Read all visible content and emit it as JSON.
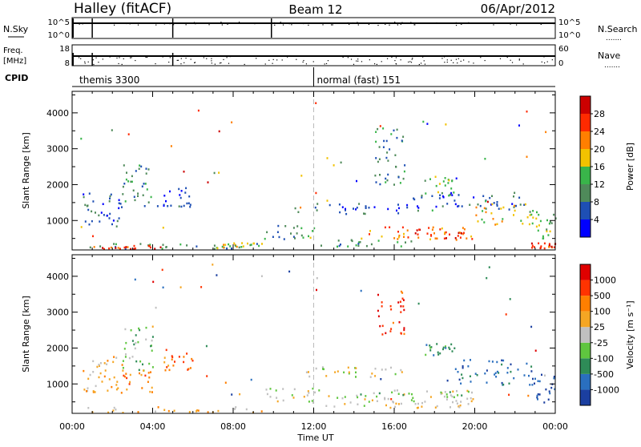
{
  "header": {
    "title": "Halley (fitACF)",
    "beam": "Beam 12",
    "date": "06/Apr/2012"
  },
  "left_labels": {
    "nsky": "N.Sky",
    "freq": "Freq.",
    "freq_unit": "[MHz]",
    "cpid": "CPID"
  },
  "right_labels": {
    "nsearch": "N.Search",
    "nave": "Nave",
    "dots": "......."
  },
  "ticks": {
    "noise_hi": "10^5",
    "noise_lo": "10^0",
    "freq_hi": "18",
    "freq_lo": "8",
    "nave_hi": "60",
    "nave_lo": "0"
  },
  "cpid_labels": [
    {
      "text": "themis 3300",
      "hour": 0.2
    },
    {
      "text": "normal (fast) 151",
      "hour": 12.0
    }
  ],
  "colors": {
    "axis": "#000000",
    "dash": "#bbbbbb"
  },
  "chart_data": [
    {
      "type": "heatmap",
      "quantity": "power",
      "ylabel": "Slant Range [km]",
      "xlabel": "Time UT",
      "xlim": [
        0,
        24
      ],
      "ylim": [
        180,
        4600
      ],
      "x_tick_labels": [
        "00:00",
        "04:00",
        "08:00",
        "12:00",
        "16:00",
        "20:00",
        "00:00"
      ],
      "y_ticks": [
        1000,
        2000,
        3000,
        4000
      ],
      "colorbar": {
        "label": "Power [dB]",
        "ticks": [
          "4",
          "8",
          "12",
          "16",
          "20",
          "24",
          "28"
        ],
        "colors": [
          "#0000ff",
          "#1e4fb4",
          "#4f8a5a",
          "#39b54a",
          "#f2c200",
          "#ff7f00",
          "#ff2a00",
          "#cc0000"
        ]
      },
      "regions": [
        {
          "t0": 0.0,
          "t1": 9.5,
          "r0": 220,
          "r1": 380,
          "level": 2
        },
        {
          "t0": 1.0,
          "t1": 4.5,
          "r0": 230,
          "r1": 330,
          "level": 6
        },
        {
          "t0": 0.5,
          "t1": 2.5,
          "r0": 700,
          "r1": 1800,
          "level": 1
        },
        {
          "t0": 2.5,
          "t1": 4.0,
          "r0": 1400,
          "r1": 2600,
          "level": 2
        },
        {
          "t0": 4.5,
          "t1": 6.0,
          "r0": 1400,
          "r1": 2000,
          "level": 1
        },
        {
          "t0": 7.0,
          "t1": 9.5,
          "r0": 250,
          "r1": 400,
          "level": 4
        },
        {
          "t0": 9.5,
          "t1": 12.0,
          "r0": 500,
          "r1": 900,
          "level": 2
        },
        {
          "t0": 11.0,
          "t1": 16.5,
          "r0": 1200,
          "r1": 1500,
          "level": 1
        },
        {
          "t0": 12.0,
          "t1": 17.0,
          "r0": 300,
          "r1": 500,
          "level": 2
        },
        {
          "t0": 14.0,
          "t1": 20.0,
          "r0": 500,
          "r1": 850,
          "level": 5
        },
        {
          "t0": 17.0,
          "t1": 20.0,
          "r0": 450,
          "r1": 800,
          "level": 6
        },
        {
          "t0": 15.0,
          "t1": 16.5,
          "r0": 2000,
          "r1": 3600,
          "level": 2
        },
        {
          "t0": 17.5,
          "t1": 19.0,
          "r0": 1700,
          "r1": 2300,
          "level": 3
        },
        {
          "t0": 16.5,
          "t1": 22.5,
          "r0": 1300,
          "r1": 1800,
          "level": 1
        },
        {
          "t0": 20.0,
          "t1": 23.0,
          "r0": 900,
          "r1": 1500,
          "level": 4
        },
        {
          "t0": 22.8,
          "t1": 24.0,
          "r0": 250,
          "r1": 400,
          "level": 6
        },
        {
          "t0": 23.0,
          "t1": 24.0,
          "r0": 500,
          "r1": 1300,
          "level": 3
        }
      ]
    },
    {
      "type": "heatmap",
      "quantity": "velocity",
      "ylabel": "Slant Range [km]",
      "xlabel": "Time UT",
      "xlim": [
        0,
        24
      ],
      "ylim": [
        180,
        4600
      ],
      "x_tick_labels": [
        "00:00",
        "04:00",
        "08:00",
        "12:00",
        "16:00",
        "20:00",
        "00:00"
      ],
      "y_ticks": [
        1000,
        2000,
        3000,
        4000
      ],
      "colorbar": {
        "label": "Velocity [m s⁻¹]",
        "ticks": [
          "1000",
          "500",
          "100",
          "25",
          "-25",
          "-100",
          "-500",
          "-1000"
        ],
        "colors": [
          "#1b3fa0",
          "#2a6fbf",
          "#2e8b57",
          "#5fc63f",
          "#c0c0c0",
          "#f5a623",
          "#ff7f00",
          "#ff3300",
          "#e00000"
        ]
      },
      "regions": [
        {
          "t0": 0.0,
          "t1": 9.5,
          "r0": 220,
          "r1": 380,
          "level": 5
        },
        {
          "t0": 0.5,
          "t1": 2.5,
          "r0": 700,
          "r1": 1800,
          "level": 5
        },
        {
          "t0": 2.5,
          "t1": 4.0,
          "r0": 1400,
          "r1": 2600,
          "level": 3
        },
        {
          "t0": 2.5,
          "t1": 4.0,
          "r0": 700,
          "r1": 1400,
          "level": 6
        },
        {
          "t0": 4.5,
          "t1": 6.0,
          "r0": 1400,
          "r1": 2000,
          "level": 6
        },
        {
          "t0": 9.5,
          "t1": 12.0,
          "r0": 500,
          "r1": 900,
          "level": 4
        },
        {
          "t0": 11.0,
          "t1": 16.5,
          "r0": 1200,
          "r1": 1500,
          "level": 4
        },
        {
          "t0": 12.0,
          "t1": 20.0,
          "r0": 350,
          "r1": 850,
          "level": 4
        },
        {
          "t0": 14.0,
          "t1": 20.0,
          "r0": 600,
          "r1": 800,
          "level": 3
        },
        {
          "t0": 15.0,
          "t1": 16.5,
          "r0": 2400,
          "r1": 3600,
          "level": 7
        },
        {
          "t0": 17.5,
          "t1": 19.0,
          "r0": 1800,
          "r1": 2200,
          "level": 2
        },
        {
          "t0": 19.0,
          "t1": 23.0,
          "r0": 1000,
          "r1": 1700,
          "level": 1
        },
        {
          "t0": 22.8,
          "t1": 24.0,
          "r0": 500,
          "r1": 1300,
          "level": 0
        }
      ]
    }
  ]
}
